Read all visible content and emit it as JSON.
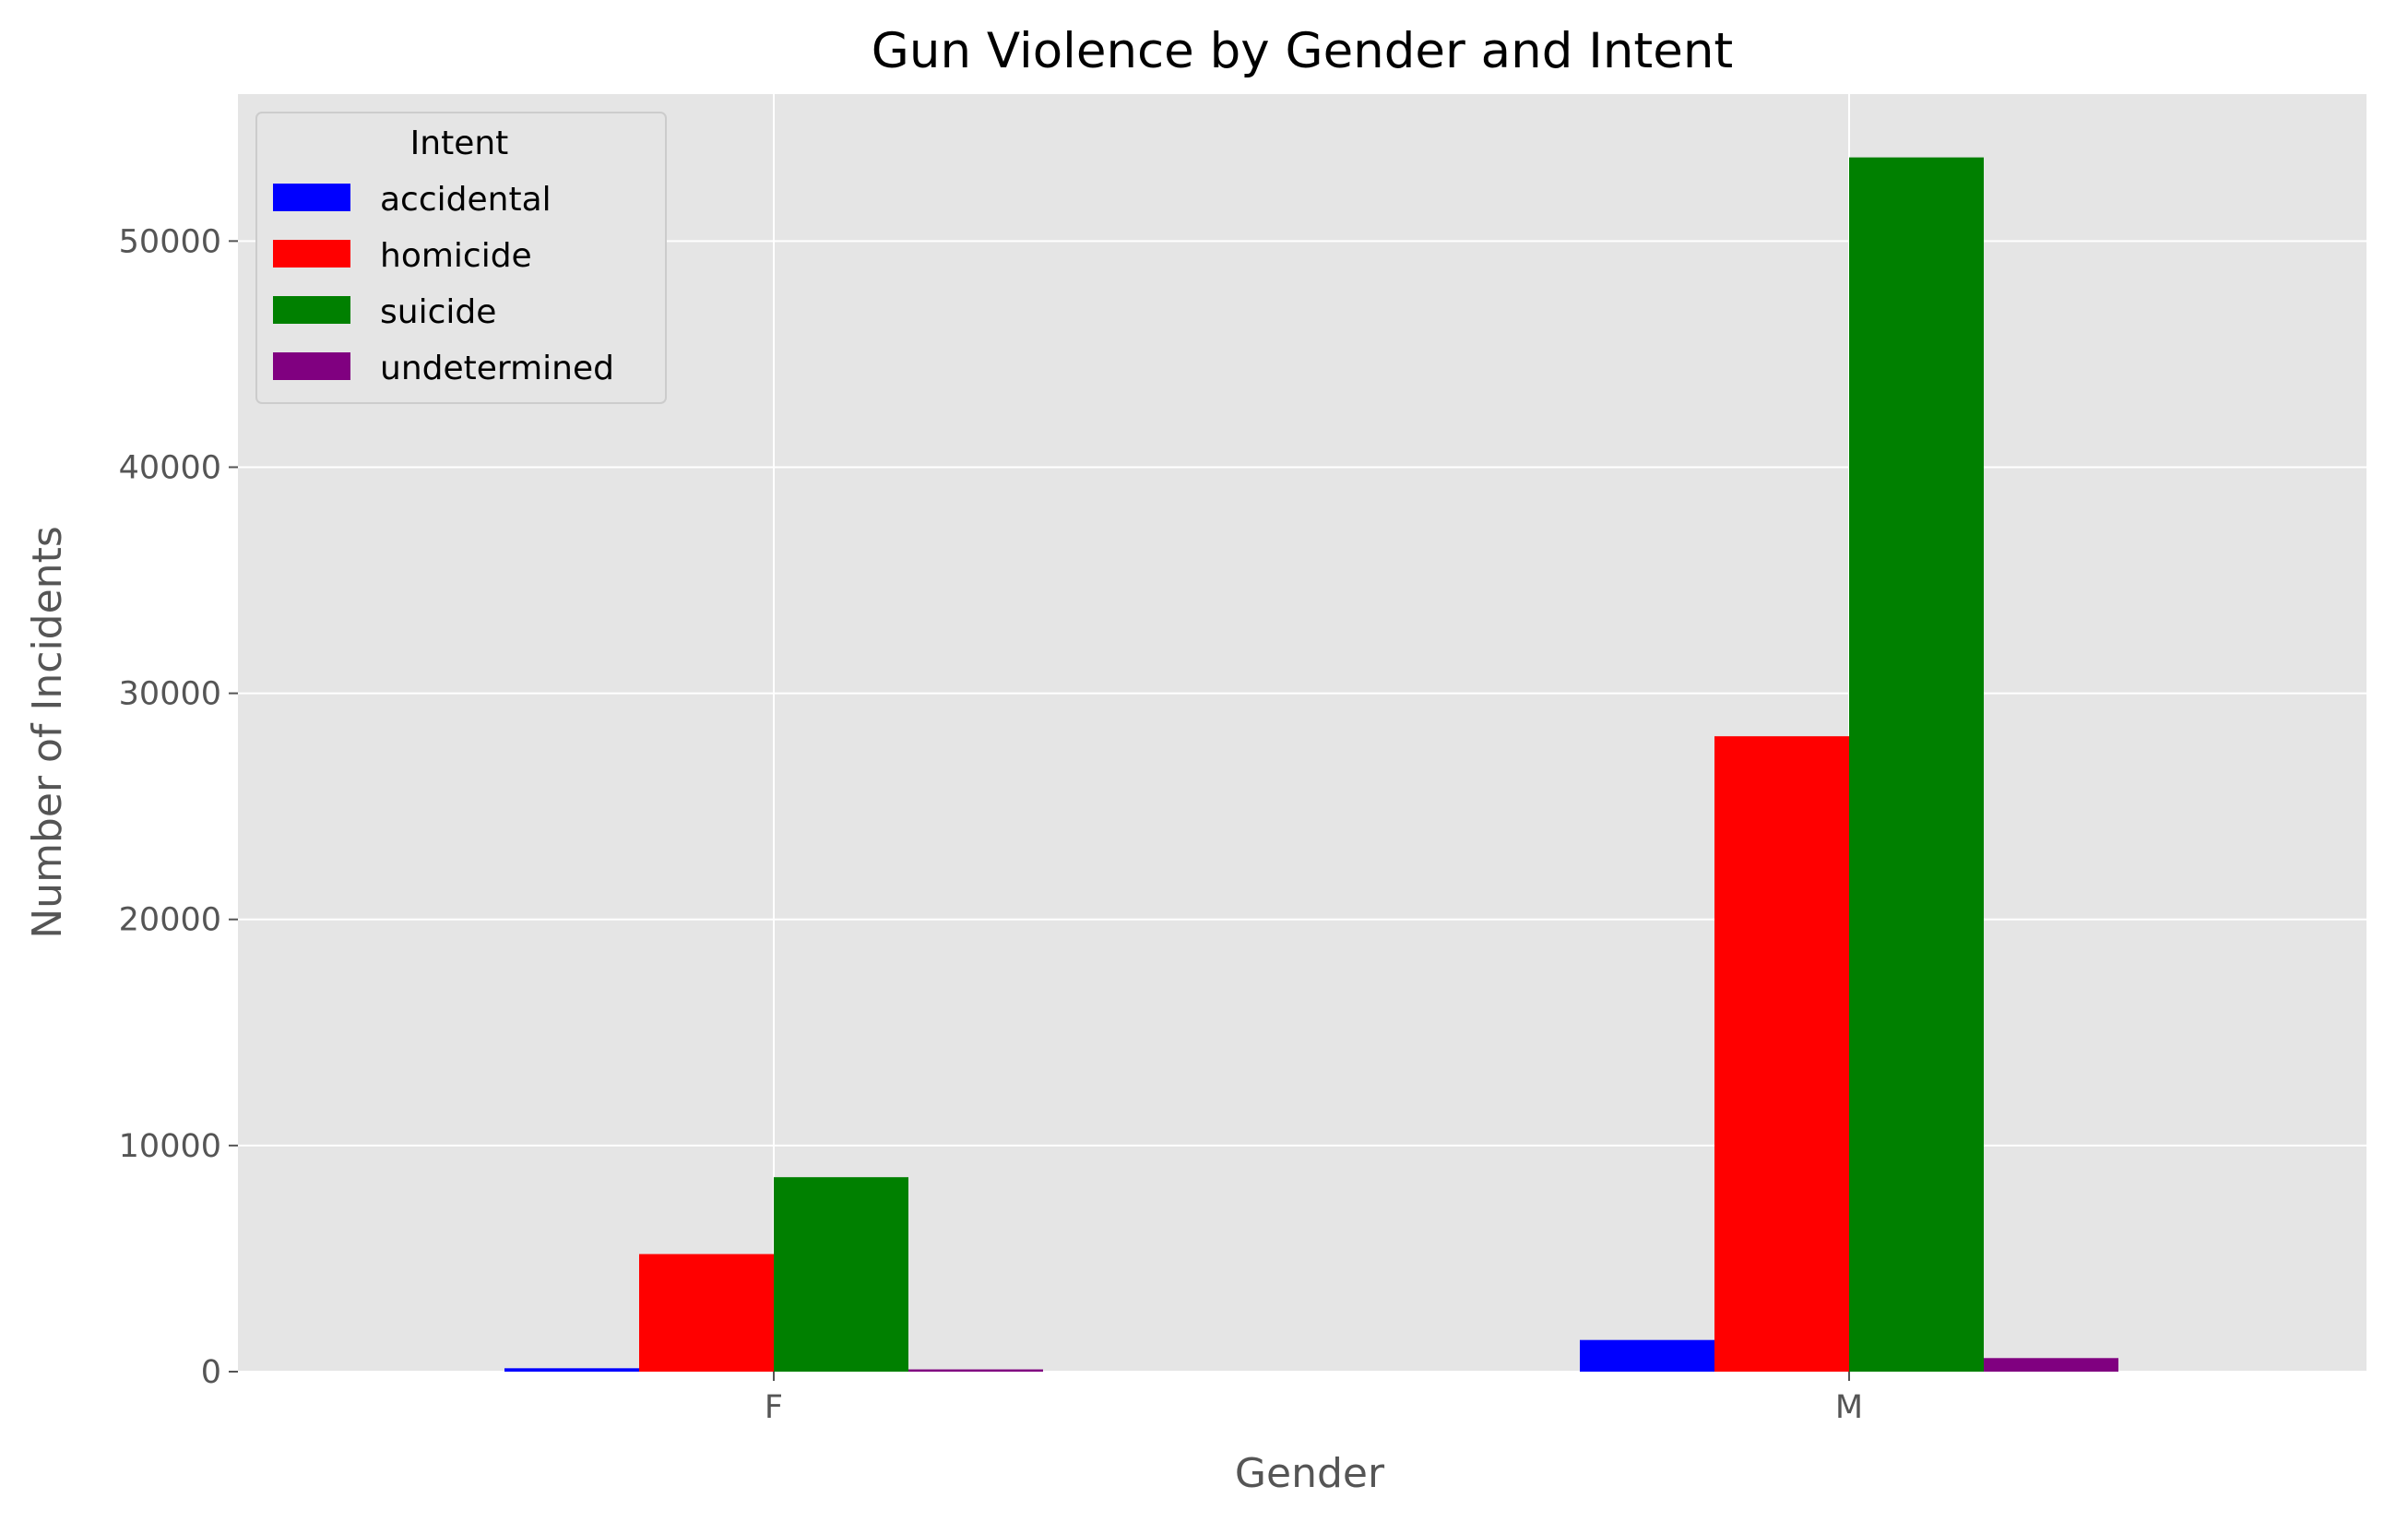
{
  "chart_data": {
    "type": "bar",
    "title": "Gun Violence by Gender and Intent",
    "xlabel": "Gender",
    "ylabel": "Number of Incidents",
    "categories": [
      "F",
      "M"
    ],
    "ylim": [
      0,
      56500
    ],
    "yticks": [
      0,
      10000,
      20000,
      30000,
      40000,
      50000
    ],
    "grid": true,
    "legend": {
      "title": "Intent",
      "placement": "top-left"
    },
    "series": [
      {
        "name": "accidental",
        "color": "#0000ff",
        "values": [
          150,
          1400
        ]
      },
      {
        "name": "homicide",
        "color": "#ff0000",
        "values": [
          5200,
          28100
        ]
      },
      {
        "name": "suicide",
        "color": "#008000",
        "values": [
          8600,
          53700
        ]
      },
      {
        "name": "undetermined",
        "color": "#800080",
        "values": [
          100,
          600
        ]
      }
    ]
  }
}
